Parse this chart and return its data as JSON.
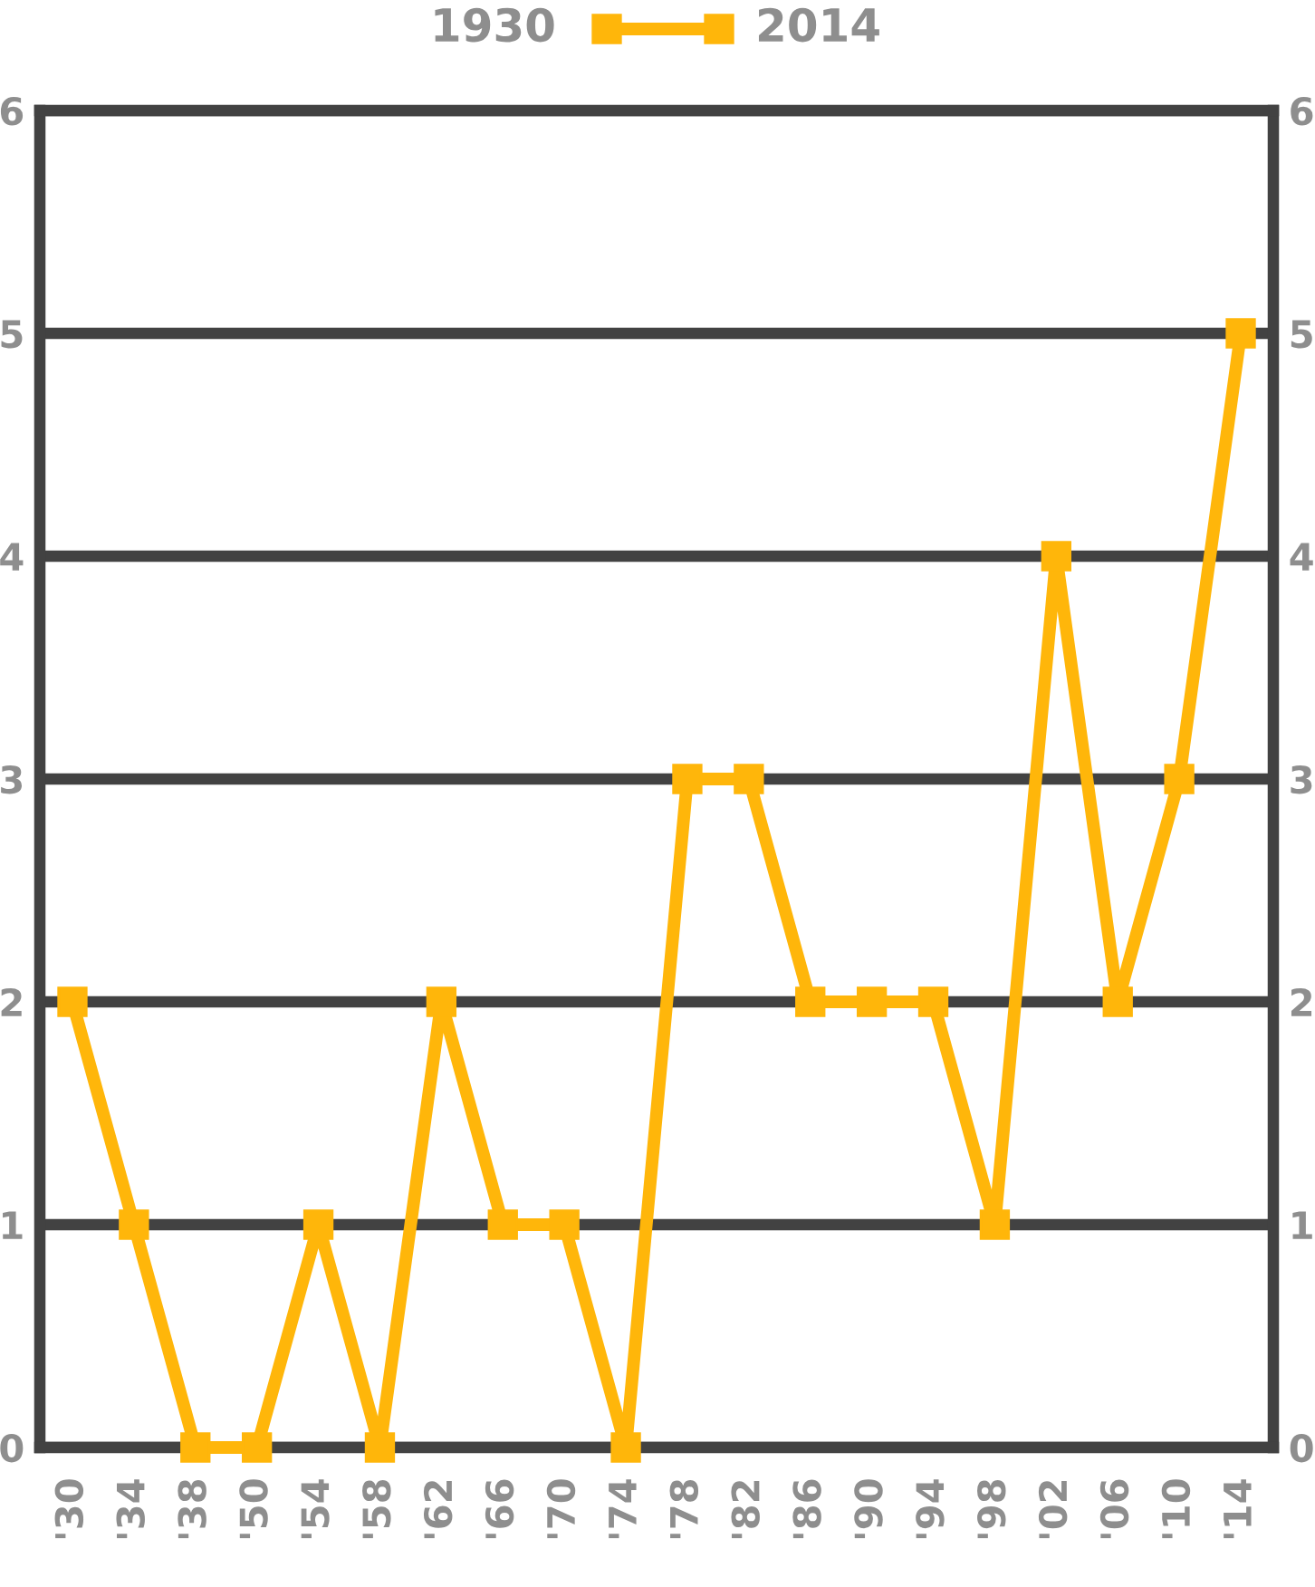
{
  "chart_data": {
    "type": "line",
    "categories": [
      "'30",
      "'34",
      "'38",
      "'50",
      "'54",
      "'58",
      "'62",
      "'66",
      "'70",
      "'74",
      "'78",
      "'82",
      "'86",
      "'90",
      "'94",
      "'98",
      "'02",
      "'06",
      "'10",
      "'14"
    ],
    "series": [
      {
        "color": "#ffb60a",
        "values": [
          2,
          1,
          0,
          0,
          1,
          0,
          2,
          1,
          1,
          0,
          3,
          3,
          2,
          2,
          2,
          1,
          4,
          2,
          3,
          5
        ]
      }
    ],
    "ylim": [
      0,
      6
    ],
    "yticks": [
      0,
      1,
      2,
      3,
      4,
      5,
      6
    ],
    "y2lim": [
      0,
      6
    ],
    "y2ticks": [
      0,
      1,
      2,
      3,
      4,
      5,
      6
    ],
    "grid": "y",
    "marker": "square",
    "line_style": "solid",
    "annotations": [
      "1930",
      "2014"
    ]
  }
}
